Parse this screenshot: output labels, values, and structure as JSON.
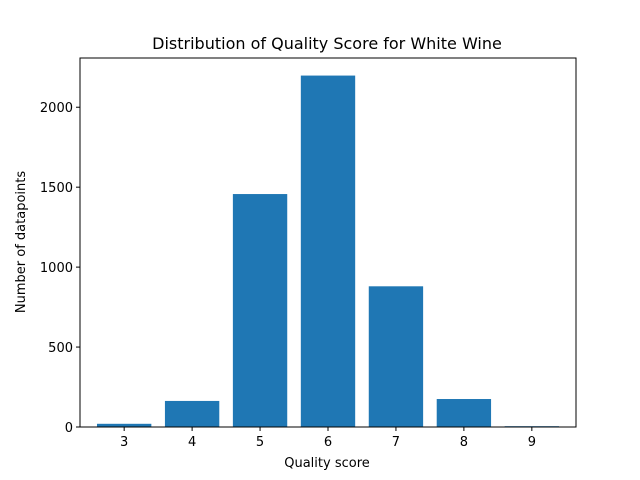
{
  "chart_data": {
    "type": "bar",
    "title": "Distribution of Quality Score for White Wine",
    "xlabel": "Quality score",
    "ylabel": "Number of datapoints",
    "categories": [
      "3",
      "4",
      "5",
      "6",
      "7",
      "8",
      "9"
    ],
    "x": [
      3,
      4,
      5,
      6,
      7,
      8,
      9
    ],
    "values": [
      20,
      163,
      1457,
      2198,
      880,
      175,
      5
    ],
    "xlim": [
      2.35,
      9.65
    ],
    "ylim": [
      0,
      2307.9
    ],
    "yticks": [
      0,
      500,
      1000,
      1500,
      2000
    ],
    "yticklabels": [
      "0",
      "500",
      "1000",
      "1500",
      "2000"
    ],
    "bar_color": "#1f77b4",
    "grid": false,
    "legend": "none"
  }
}
